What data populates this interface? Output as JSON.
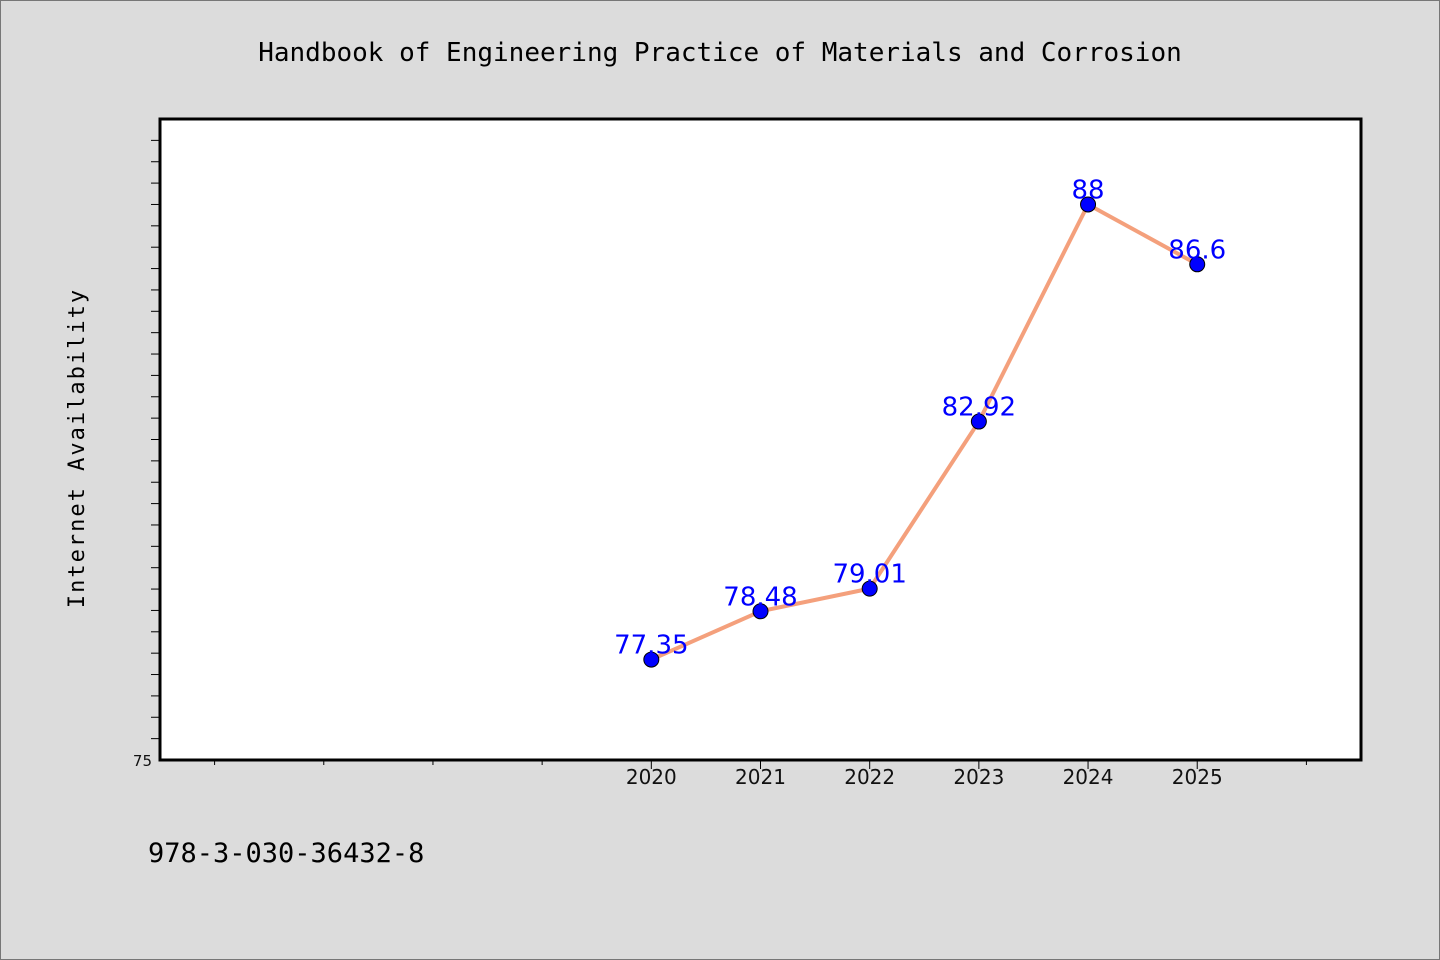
{
  "colors": {
    "background": "#dcdcdc",
    "plot_background": "#ffffff",
    "line": "#f4a07c",
    "marker": "#0000ff",
    "data_label": "#0000ff"
  },
  "footer": {
    "isbn": "978-3-030-36432-8"
  },
  "chart_data": {
    "type": "line",
    "title": "Handbook of Engineering Practice of Materials and Corrosion",
    "xlabel": "",
    "ylabel": "Internet Availability",
    "x": [
      2020,
      2021,
      2022,
      2023,
      2024,
      2025
    ],
    "x_tick_labels": [
      "2020",
      "2021",
      "2022",
      "2023",
      "2024",
      "2025"
    ],
    "series": [
      {
        "values": [
          77.35,
          78.48,
          79.01,
          82.92,
          88,
          86.6
        ],
        "data_labels": [
          "77.35",
          "78.48",
          "79.01",
          "82.92",
          "88",
          "86.6"
        ]
      }
    ],
    "y_tick_labels": [
      "75"
    ],
    "xlim": [
      2015.5,
      2026.5
    ],
    "ylim": [
      75,
      90
    ],
    "grid": false,
    "legend": "none"
  }
}
